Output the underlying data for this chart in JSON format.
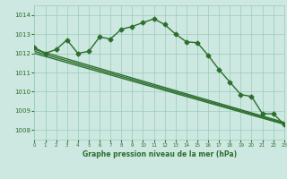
{
  "background_color": "#cce8e0",
  "grid_color": "#99ccbb",
  "line_color": "#2d6e2d",
  "title": "Graphe pression niveau de la mer (hPa)",
  "xlim": [
    0,
    23
  ],
  "ylim": [
    1007.5,
    1014.5
  ],
  "yticks": [
    1008,
    1009,
    1010,
    1011,
    1012,
    1013,
    1014
  ],
  "xticks": [
    0,
    1,
    2,
    3,
    4,
    5,
    6,
    7,
    8,
    9,
    10,
    11,
    12,
    13,
    14,
    15,
    16,
    17,
    18,
    19,
    20,
    21,
    22,
    23
  ],
  "series": [
    {
      "x": [
        0,
        1,
        2,
        3,
        4,
        5,
        6,
        7,
        8,
        9,
        10,
        11,
        12,
        13,
        14,
        15,
        16,
        17,
        18,
        19,
        20,
        21,
        22,
        23
      ],
      "y": [
        1012.3,
        1012.0,
        1012.2,
        1012.7,
        1012.0,
        1012.1,
        1012.85,
        1012.75,
        1013.25,
        1013.4,
        1013.6,
        1013.8,
        1013.5,
        1013.0,
        1012.6,
        1012.55,
        1011.9,
        1011.15,
        1010.5,
        1009.85,
        1009.75,
        1008.85,
        1008.85,
        1008.3
      ],
      "marker": "D",
      "markersize": 2.5,
      "linewidth": 1.0
    },
    {
      "x": [
        0,
        23
      ],
      "y": [
        1012.2,
        1008.4
      ],
      "marker": null,
      "linewidth": 1.0
    },
    {
      "x": [
        0,
        23
      ],
      "y": [
        1012.1,
        1008.35
      ],
      "marker": null,
      "linewidth": 1.0
    },
    {
      "x": [
        0,
        23
      ],
      "y": [
        1012.0,
        1008.3
      ],
      "marker": null,
      "linewidth": 1.0
    }
  ]
}
